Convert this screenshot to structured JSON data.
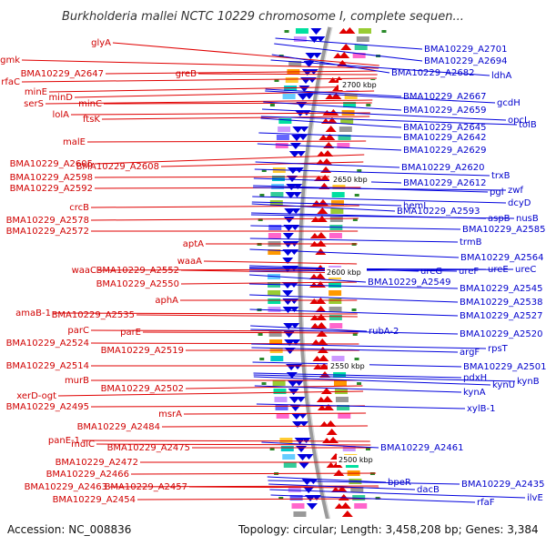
{
  "title": "Burkholderia mallei NCTC 10229 chromosome I, complete sequen...",
  "footer": {
    "accession": "Accession: NC_008836",
    "topology": "Topology: circular; Length: 3,458,208 bp; Genes: 3,384"
  },
  "kbp_labels": [
    "2700 kbp",
    "2650 kbp",
    "2600 kbp",
    "2550 kbp",
    "2500 kbp"
  ],
  "left_labels": [
    "glyA",
    "gmk",
    "BMA10229_A2647",
    "greB",
    "rfaC",
    "minE",
    "minD",
    "serS",
    "minC",
    "lolA",
    "ftsK",
    "malE",
    "BMA10229_A2605",
    "BMA10229_A2608",
    "BMA10229_A2598",
    "BMA10229_A2592",
    "crcB",
    "BMA10229_A2578",
    "BMA10229_A2572",
    "aptA",
    "waaA",
    "waaC",
    "BMA10229_A2552",
    "BMA10229_A2550",
    "aphA",
    "amaB-1",
    "BMA10229_A2535",
    "parC",
    "parE",
    "BMA10229_A2524",
    "BMA10229_A2519",
    "BMA10229_A2514",
    "murB",
    "BMA10229_A2502",
    "xerD-ogt",
    "BMA10229_A2495",
    "msrA",
    "BMA10229_A2484",
    "panE-1",
    "mdlC",
    "BMA10229_A2475",
    "BMA10229_A2472",
    "BMA10229_A2466",
    "BMA10229_A2463",
    "BMA10229_A2457",
    "BMA10229_A2454"
  ],
  "right_labels": [
    "BMA10229_A2701",
    "BMA10229_A2694",
    "BMA10229_A2682",
    "ldhA",
    "BMA10229_A2667",
    "gcdH",
    "BMA10229_A2659",
    "opcL",
    "BMA10229_A2645",
    "tolB",
    "BMA10229_A2642",
    "BMA10229_A2629",
    "BMA10229_A2620",
    "trxB",
    "BMA10229_A2612",
    "pgl",
    "zwf",
    "dcyD",
    "hemL",
    "BMA10229_A2593",
    "aspB",
    "nusB",
    "BMA10229_A2585",
    "trmB",
    "BMA10229_A2564",
    "ureG",
    "ureF",
    "ureE",
    "ureC",
    "BMA10229_A2549",
    "BMA10229_A2545",
    "BMA10229_A2538",
    "BMA10229_A2527",
    "rubA-2",
    "BMA10229_A2520",
    "rpsT",
    "argF",
    "BMA10229_A2501",
    "pdxH",
    "kynB",
    "kynU",
    "kynA",
    "xylB-1",
    "BMA10229_A2461",
    "bpeR",
    "dacB",
    "BMA10229_A2435",
    "ilvE",
    "rfaF"
  ],
  "colors": {
    "forward": "#e00000",
    "reverse": "#0000dd",
    "backbone": "#888888"
  }
}
